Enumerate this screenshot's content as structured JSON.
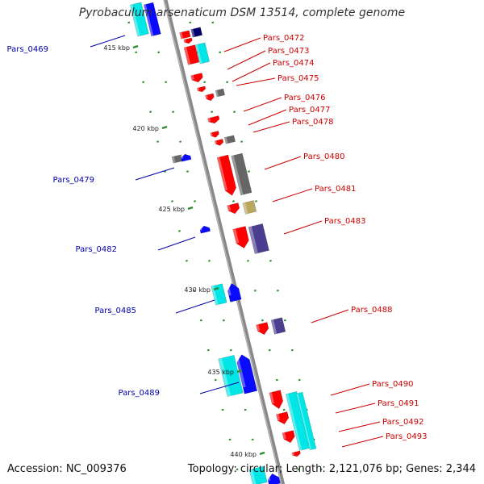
{
  "title": "Pyrobaculum arsenaticum DSM 13514, complete genome",
  "footer": {
    "accession": "Accession: NC_009376",
    "summary": "Topology: circular; Length: 2,121,076 bp; Genes: 2,344"
  },
  "colors": {
    "backbone": "#888888",
    "tick": "#2e8b2e",
    "label_forward": "#cc0000",
    "label_reverse": "#0000aa",
    "cyan": "#00e6e6",
    "blue": "#0a0aff",
    "navy": "#00006e",
    "red": "#ff0000",
    "gray": "#666666",
    "purple": "#4b3d8f",
    "khaki": "#b8a860"
  },
  "ticks": [
    "415 kbp",
    "420 kbp",
    "425 kbp",
    "430 kbp",
    "435 kbp",
    "440 kbp"
  ],
  "gene_labels": [
    {
      "id": "Pars_0469",
      "strand": "reverse"
    },
    {
      "id": "Pars_0472",
      "strand": "forward"
    },
    {
      "id": "Pars_0473",
      "strand": "forward"
    },
    {
      "id": "Pars_0474",
      "strand": "forward"
    },
    {
      "id": "Pars_0475",
      "strand": "forward"
    },
    {
      "id": "Pars_0476",
      "strand": "forward"
    },
    {
      "id": "Pars_0477",
      "strand": "forward"
    },
    {
      "id": "Pars_0478",
      "strand": "forward"
    },
    {
      "id": "Pars_0479",
      "strand": "reverse"
    },
    {
      "id": "Pars_0480",
      "strand": "forward"
    },
    {
      "id": "Pars_0481",
      "strand": "forward"
    },
    {
      "id": "Pars_0482",
      "strand": "reverse"
    },
    {
      "id": "Pars_0483",
      "strand": "forward"
    },
    {
      "id": "Pars_0485",
      "strand": "reverse"
    },
    {
      "id": "Pars_0488",
      "strand": "forward"
    },
    {
      "id": "Pars_0489",
      "strand": "reverse"
    },
    {
      "id": "Pars_0490",
      "strand": "forward"
    },
    {
      "id": "Pars_0491",
      "strand": "forward"
    },
    {
      "id": "Pars_0492",
      "strand": "forward"
    },
    {
      "id": "Pars_0493",
      "strand": "forward"
    }
  ]
}
